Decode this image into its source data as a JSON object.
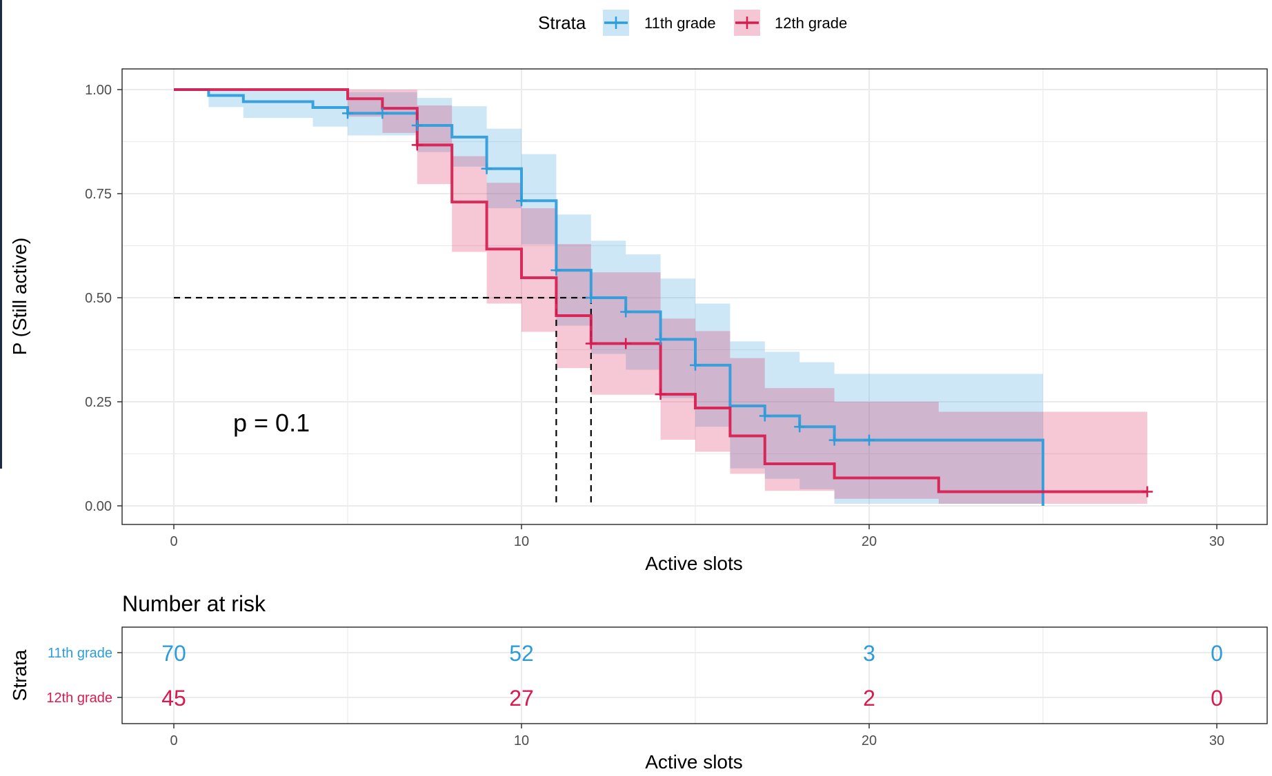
{
  "legend": {
    "title": "Strata",
    "items": [
      {
        "label": "11th grade",
        "color": "#2d9cdb"
      },
      {
        "label": "12th grade",
        "color": "#d81b4f"
      }
    ]
  },
  "chart_data": {
    "type": "line",
    "subtype": "kaplan-meier step curves with confidence bands",
    "xlabel": "Active slots",
    "ylabel": "P (Still active)",
    "xlim": [
      0,
      30
    ],
    "ylim": [
      0,
      1
    ],
    "xticks": [
      "0",
      "10",
      "20",
      "30"
    ],
    "yticks": [
      "0.00",
      "0.25",
      "0.50",
      "0.75",
      "1.00"
    ],
    "grid": true,
    "legend_position": "top",
    "annotation": "p = 0.1",
    "median_line": {
      "y": 0.5,
      "x": [
        11,
        12
      ]
    },
    "series": [
      {
        "name": "11th grade",
        "color": "#2d9cdb",
        "steps": [
          [
            0,
            1.0
          ],
          [
            1,
            0.986
          ],
          [
            2,
            0.971
          ],
          [
            4,
            0.957
          ],
          [
            5,
            0.943
          ],
          [
            7,
            0.914
          ],
          [
            8,
            0.886
          ],
          [
            9,
            0.81
          ],
          [
            10,
            0.733
          ],
          [
            11,
            0.566
          ],
          [
            12,
            0.5
          ],
          [
            13,
            0.466
          ],
          [
            14,
            0.4
          ],
          [
            15,
            0.338
          ],
          [
            16,
            0.24
          ],
          [
            17,
            0.216
          ],
          [
            18,
            0.19
          ],
          [
            19,
            0.158
          ],
          [
            25,
            0.0
          ]
        ],
        "upper": [
          1.0,
          1.0,
          1.0,
          0.998,
          0.994,
          0.98,
          0.96,
          0.906,
          0.845,
          0.7,
          0.637,
          0.604,
          0.546,
          0.486,
          0.395,
          0.37,
          0.345,
          0.317,
          0.317
        ],
        "lower": [
          1.0,
          0.958,
          0.932,
          0.911,
          0.89,
          0.85,
          0.815,
          0.715,
          0.628,
          0.433,
          0.365,
          0.327,
          0.259,
          0.19,
          0.09,
          0.065,
          0.04,
          0.005,
          0.0
        ],
        "censor_x": [
          5,
          6,
          7,
          9,
          10,
          11,
          12,
          13,
          14,
          15,
          17,
          18,
          19,
          20
        ]
      },
      {
        "name": "12th grade",
        "color": "#d81b4f",
        "steps": [
          [
            0,
            1.0
          ],
          [
            5,
            0.978
          ],
          [
            6,
            0.955
          ],
          [
            7,
            0.867
          ],
          [
            8,
            0.73
          ],
          [
            9,
            0.617
          ],
          [
            10,
            0.548
          ],
          [
            11,
            0.457
          ],
          [
            12,
            0.39
          ],
          [
            14,
            0.268
          ],
          [
            15,
            0.235
          ],
          [
            16,
            0.168
          ],
          [
            17,
            0.101
          ],
          [
            19,
            0.067
          ],
          [
            22,
            0.034
          ],
          [
            28,
            0.034
          ]
        ],
        "upper": [
          1.0,
          1.0,
          1.0,
          0.962,
          0.84,
          0.776,
          0.715,
          0.629,
          0.561,
          0.45,
          0.42,
          0.355,
          0.283,
          0.25,
          0.226,
          0.226
        ],
        "lower": [
          1.0,
          0.935,
          0.896,
          0.773,
          0.61,
          0.486,
          0.418,
          0.331,
          0.267,
          0.159,
          0.13,
          0.077,
          0.036,
          0.017,
          0.005,
          0.005
        ],
        "censor_x": [
          7,
          12,
          13,
          14,
          28
        ]
      }
    ]
  },
  "risk_table": {
    "title": "Number at risk",
    "ylabel": "Strata",
    "xlabel": "Active slots",
    "xticks": [
      "0",
      "10",
      "20",
      "30"
    ],
    "rows": [
      {
        "label": "11th grade",
        "color": "#2d9cdb",
        "counts": [
          "70",
          "52",
          "3",
          "0"
        ]
      },
      {
        "label": "12th grade",
        "color": "#d81b4f",
        "counts": [
          "45",
          "27",
          "2",
          "0"
        ]
      }
    ]
  }
}
